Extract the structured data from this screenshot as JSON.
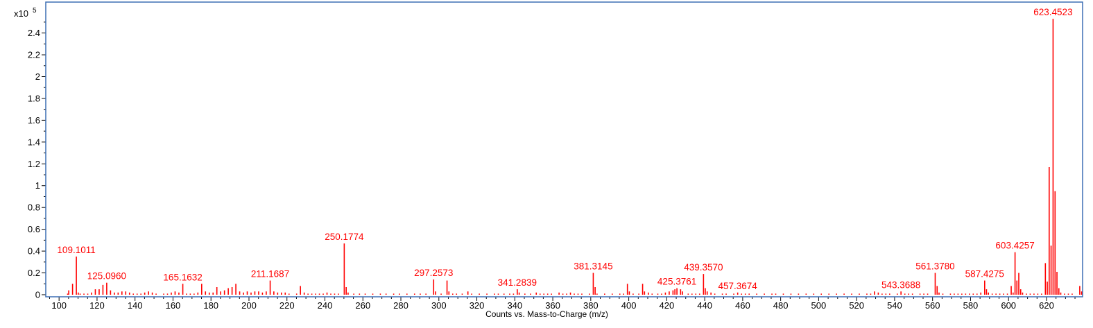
{
  "chart_data": {
    "type": "bar",
    "title": "",
    "xlabel": "Counts vs. Mass-to-Charge (m/z)",
    "ylabel": "",
    "y_multiplier_label": "x10",
    "y_multiplier_exponent": "5",
    "xlim": [
      93,
      639
    ],
    "ylim": [
      0,
      2.62
    ],
    "x_ticks": [
      100,
      120,
      140,
      160,
      180,
      200,
      220,
      240,
      260,
      280,
      300,
      320,
      340,
      360,
      380,
      400,
      420,
      440,
      460,
      480,
      500,
      520,
      540,
      560,
      580,
      600,
      620
    ],
    "y_ticks": [
      {
        "value": 0,
        "label": "0"
      },
      {
        "value": 0.2,
        "label": "0.2"
      },
      {
        "value": 0.4,
        "label": "0.4"
      },
      {
        "value": 0.6,
        "label": "0.6"
      },
      {
        "value": 0.8,
        "label": "0.8"
      },
      {
        "value": 1.0,
        "label": "1"
      },
      {
        "value": 1.2,
        "label": "1.2"
      },
      {
        "value": 1.4,
        "label": "1.4"
      },
      {
        "value": 1.6,
        "label": "1.6"
      },
      {
        "value": 1.8,
        "label": "1.8"
      },
      {
        "value": 2.0,
        "label": "2"
      },
      {
        "value": 2.2,
        "label": "2.2"
      },
      {
        "value": 2.4,
        "label": "2.4"
      }
    ],
    "grid": false,
    "legend": "none",
    "colors": {
      "peak": "#ff0000",
      "label": "#ff0000",
      "frame": "#3c6eb4",
      "axis": "#000000"
    },
    "labeled_peaks": [
      {
        "mz": 109.1011,
        "intensity": 0.35,
        "label": "109.1011"
      },
      {
        "mz": 125.096,
        "intensity": 0.11,
        "label": "125.0960"
      },
      {
        "mz": 165.1632,
        "intensity": 0.1,
        "label": "165.1632"
      },
      {
        "mz": 211.1687,
        "intensity": 0.13,
        "label": "211.1687"
      },
      {
        "mz": 250.1774,
        "intensity": 0.47,
        "label": "250.1774"
      },
      {
        "mz": 297.2573,
        "intensity": 0.14,
        "label": "297.2573"
      },
      {
        "mz": 341.2839,
        "intensity": 0.05,
        "label": "341.2839"
      },
      {
        "mz": 381.3145,
        "intensity": 0.2,
        "label": "381.3145"
      },
      {
        "mz": 425.3761,
        "intensity": 0.06,
        "label": "425.3761"
      },
      {
        "mz": 439.357,
        "intensity": 0.19,
        "label": "439.3570"
      },
      {
        "mz": 457.3674,
        "intensity": 0.02,
        "label": "457.3674"
      },
      {
        "mz": 543.3688,
        "intensity": 0.03,
        "label": "543.3688"
      },
      {
        "mz": 561.378,
        "intensity": 0.2,
        "label": "561.3780"
      },
      {
        "mz": 587.4275,
        "intensity": 0.13,
        "label": "587.4275"
      },
      {
        "mz": 603.4257,
        "intensity": 0.39,
        "label": "603.4257"
      },
      {
        "mz": 623.4523,
        "intensity": 2.53,
        "label": "623.4523"
      }
    ],
    "peaks": [
      {
        "mz": 104.5,
        "intensity": 0.01
      },
      {
        "mz": 105.1,
        "intensity": 0.04
      },
      {
        "mz": 107.1,
        "intensity": 0.1
      },
      {
        "mz": 110.1,
        "intensity": 0.02
      },
      {
        "mz": 111.1,
        "intensity": 0.01
      },
      {
        "mz": 113.1,
        "intensity": 0.01
      },
      {
        "mz": 115.1,
        "intensity": 0.01
      },
      {
        "mz": 117.1,
        "intensity": 0.02
      },
      {
        "mz": 119.1,
        "intensity": 0.05
      },
      {
        "mz": 121.1,
        "intensity": 0.05
      },
      {
        "mz": 123.1,
        "intensity": 0.09
      },
      {
        "mz": 127.1,
        "intensity": 0.04
      },
      {
        "mz": 129.1,
        "intensity": 0.02
      },
      {
        "mz": 131.1,
        "intensity": 0.02
      },
      {
        "mz": 133.1,
        "intensity": 0.03
      },
      {
        "mz": 135.1,
        "intensity": 0.03
      },
      {
        "mz": 137.1,
        "intensity": 0.02
      },
      {
        "mz": 139.1,
        "intensity": 0.01
      },
      {
        "mz": 141.1,
        "intensity": 0.01
      },
      {
        "mz": 143.1,
        "intensity": 0.01
      },
      {
        "mz": 145.1,
        "intensity": 0.02
      },
      {
        "mz": 147.1,
        "intensity": 0.03
      },
      {
        "mz": 149.1,
        "intensity": 0.02
      },
      {
        "mz": 151.1,
        "intensity": 0.01
      },
      {
        "mz": 155.1,
        "intensity": 0.01
      },
      {
        "mz": 157.1,
        "intensity": 0.01
      },
      {
        "mz": 159.1,
        "intensity": 0.02
      },
      {
        "mz": 161.1,
        "intensity": 0.03
      },
      {
        "mz": 163.1,
        "intensity": 0.02
      },
      {
        "mz": 167.1,
        "intensity": 0.01
      },
      {
        "mz": 169.1,
        "intensity": 0.01
      },
      {
        "mz": 171.1,
        "intensity": 0.01
      },
      {
        "mz": 173.1,
        "intensity": 0.02
      },
      {
        "mz": 175.1,
        "intensity": 0.1
      },
      {
        "mz": 177.1,
        "intensity": 0.03
      },
      {
        "mz": 179.1,
        "intensity": 0.02
      },
      {
        "mz": 181.1,
        "intensity": 0.02
      },
      {
        "mz": 183.1,
        "intensity": 0.07
      },
      {
        "mz": 185.1,
        "intensity": 0.03
      },
      {
        "mz": 187.1,
        "intensity": 0.04
      },
      {
        "mz": 189.1,
        "intensity": 0.06
      },
      {
        "mz": 191.1,
        "intensity": 0.07
      },
      {
        "mz": 193.1,
        "intensity": 0.1
      },
      {
        "mz": 195.1,
        "intensity": 0.03
      },
      {
        "mz": 197.1,
        "intensity": 0.02
      },
      {
        "mz": 199.1,
        "intensity": 0.03
      },
      {
        "mz": 201.1,
        "intensity": 0.02
      },
      {
        "mz": 203.1,
        "intensity": 0.03
      },
      {
        "mz": 205.1,
        "intensity": 0.03
      },
      {
        "mz": 207.1,
        "intensity": 0.02
      },
      {
        "mz": 209.1,
        "intensity": 0.03
      },
      {
        "mz": 213.1,
        "intensity": 0.03
      },
      {
        "mz": 215.1,
        "intensity": 0.02
      },
      {
        "mz": 217.1,
        "intensity": 0.02
      },
      {
        "mz": 219.1,
        "intensity": 0.02
      },
      {
        "mz": 221.1,
        "intensity": 0.01
      },
      {
        "mz": 225.1,
        "intensity": 0.01
      },
      {
        "mz": 227.1,
        "intensity": 0.08
      },
      {
        "mz": 229.1,
        "intensity": 0.02
      },
      {
        "mz": 231.1,
        "intensity": 0.01
      },
      {
        "mz": 233.1,
        "intensity": 0.01
      },
      {
        "mz": 235.1,
        "intensity": 0.01
      },
      {
        "mz": 237.1,
        "intensity": 0.01
      },
      {
        "mz": 239.1,
        "intensity": 0.01
      },
      {
        "mz": 241.1,
        "intensity": 0.02
      },
      {
        "mz": 243.1,
        "intensity": 0.01
      },
      {
        "mz": 245.1,
        "intensity": 0.01
      },
      {
        "mz": 247.1,
        "intensity": 0.01
      },
      {
        "mz": 251.2,
        "intensity": 0.07
      },
      {
        "mz": 252.2,
        "intensity": 0.02
      },
      {
        "mz": 255.2,
        "intensity": 0.01
      },
      {
        "mz": 258.2,
        "intensity": 0.01
      },
      {
        "mz": 261.2,
        "intensity": 0.01
      },
      {
        "mz": 265.2,
        "intensity": 0.01
      },
      {
        "mz": 269.2,
        "intensity": 0.01
      },
      {
        "mz": 272.2,
        "intensity": 0.01
      },
      {
        "mz": 276.2,
        "intensity": 0.01
      },
      {
        "mz": 279.2,
        "intensity": 0.01
      },
      {
        "mz": 283.2,
        "intensity": 0.01
      },
      {
        "mz": 287.2,
        "intensity": 0.01
      },
      {
        "mz": 290.2,
        "intensity": 0.01
      },
      {
        "mz": 293.2,
        "intensity": 0.01
      },
      {
        "mz": 298.3,
        "intensity": 0.03
      },
      {
        "mz": 301.2,
        "intensity": 0.01
      },
      {
        "mz": 304.3,
        "intensity": 0.13
      },
      {
        "mz": 305.3,
        "intensity": 0.03
      },
      {
        "mz": 307.3,
        "intensity": 0.01
      },
      {
        "mz": 309.3,
        "intensity": 0.01
      },
      {
        "mz": 312.3,
        "intensity": 0.01
      },
      {
        "mz": 315.3,
        "intensity": 0.03
      },
      {
        "mz": 317.3,
        "intensity": 0.01
      },
      {
        "mz": 321.3,
        "intensity": 0.01
      },
      {
        "mz": 325.3,
        "intensity": 0.01
      },
      {
        "mz": 329.3,
        "intensity": 0.01
      },
      {
        "mz": 331.3,
        "intensity": 0.01
      },
      {
        "mz": 334.3,
        "intensity": 0.01
      },
      {
        "mz": 337.3,
        "intensity": 0.01
      },
      {
        "mz": 339.3,
        "intensity": 0.01
      },
      {
        "mz": 342.3,
        "intensity": 0.02
      },
      {
        "mz": 345.3,
        "intensity": 0.01
      },
      {
        "mz": 348.3,
        "intensity": 0.01
      },
      {
        "mz": 351.3,
        "intensity": 0.02
      },
      {
        "mz": 353.3,
        "intensity": 0.01
      },
      {
        "mz": 355.3,
        "intensity": 0.01
      },
      {
        "mz": 357.3,
        "intensity": 0.01
      },
      {
        "mz": 359.3,
        "intensity": 0.01
      },
      {
        "mz": 363.3,
        "intensity": 0.02
      },
      {
        "mz": 365.3,
        "intensity": 0.01
      },
      {
        "mz": 367.3,
        "intensity": 0.01
      },
      {
        "mz": 369.3,
        "intensity": 0.02
      },
      {
        "mz": 371.3,
        "intensity": 0.01
      },
      {
        "mz": 373.3,
        "intensity": 0.01
      },
      {
        "mz": 375.3,
        "intensity": 0.01
      },
      {
        "mz": 379.3,
        "intensity": 0.01
      },
      {
        "mz": 382.3,
        "intensity": 0.07
      },
      {
        "mz": 383.3,
        "intensity": 0.01
      },
      {
        "mz": 387.3,
        "intensity": 0.01
      },
      {
        "mz": 391.3,
        "intensity": 0.01
      },
      {
        "mz": 395.3,
        "intensity": 0.01
      },
      {
        "mz": 397.3,
        "intensity": 0.01
      },
      {
        "mz": 399.3,
        "intensity": 0.1
      },
      {
        "mz": 400.3,
        "intensity": 0.03
      },
      {
        "mz": 402.3,
        "intensity": 0.01
      },
      {
        "mz": 405.3,
        "intensity": 0.01
      },
      {
        "mz": 407.3,
        "intensity": 0.1
      },
      {
        "mz": 408.3,
        "intensity": 0.03
      },
      {
        "mz": 410.3,
        "intensity": 0.02
      },
      {
        "mz": 412.3,
        "intensity": 0.01
      },
      {
        "mz": 415.3,
        "intensity": 0.01
      },
      {
        "mz": 417.3,
        "intensity": 0.01
      },
      {
        "mz": 419.3,
        "intensity": 0.02
      },
      {
        "mz": 421.3,
        "intensity": 0.03
      },
      {
        "mz": 423.3,
        "intensity": 0.04
      },
      {
        "mz": 424.3,
        "intensity": 0.05
      },
      {
        "mz": 427.3,
        "intensity": 0.05
      },
      {
        "mz": 428.3,
        "intensity": 0.03
      },
      {
        "mz": 431.3,
        "intensity": 0.01
      },
      {
        "mz": 433.3,
        "intensity": 0.01
      },
      {
        "mz": 435.3,
        "intensity": 0.01
      },
      {
        "mz": 437.3,
        "intensity": 0.01
      },
      {
        "mz": 440.3,
        "intensity": 0.06
      },
      {
        "mz": 441.3,
        "intensity": 0.03
      },
      {
        "mz": 443.3,
        "intensity": 0.02
      },
      {
        "mz": 445.3,
        "intensity": 0.01
      },
      {
        "mz": 449.3,
        "intensity": 0.01
      },
      {
        "mz": 451.3,
        "intensity": 0.01
      },
      {
        "mz": 455.3,
        "intensity": 0.01
      },
      {
        "mz": 459.4,
        "intensity": 0.01
      },
      {
        "mz": 461.4,
        "intensity": 0.01
      },
      {
        "mz": 463.4,
        "intensity": 0.01
      },
      {
        "mz": 467.4,
        "intensity": 0.01
      },
      {
        "mz": 471.4,
        "intensity": 0.01
      },
      {
        "mz": 475.4,
        "intensity": 0.01
      },
      {
        "mz": 477.4,
        "intensity": 0.01
      },
      {
        "mz": 481.4,
        "intensity": 0.01
      },
      {
        "mz": 485.4,
        "intensity": 0.01
      },
      {
        "mz": 489.4,
        "intensity": 0.01
      },
      {
        "mz": 493.4,
        "intensity": 0.01
      },
      {
        "mz": 497.4,
        "intensity": 0.01
      },
      {
        "mz": 501.4,
        "intensity": 0.01
      },
      {
        "mz": 505.4,
        "intensity": 0.01
      },
      {
        "mz": 509.4,
        "intensity": 0.01
      },
      {
        "mz": 513.4,
        "intensity": 0.01
      },
      {
        "mz": 517.4,
        "intensity": 0.01
      },
      {
        "mz": 521.4,
        "intensity": 0.01
      },
      {
        "mz": 525.4,
        "intensity": 0.01
      },
      {
        "mz": 527.4,
        "intensity": 0.01
      },
      {
        "mz": 529.4,
        "intensity": 0.03
      },
      {
        "mz": 531.4,
        "intensity": 0.02
      },
      {
        "mz": 533.4,
        "intensity": 0.01
      },
      {
        "mz": 535.4,
        "intensity": 0.01
      },
      {
        "mz": 537.4,
        "intensity": 0.01
      },
      {
        "mz": 541.4,
        "intensity": 0.01
      },
      {
        "mz": 545.4,
        "intensity": 0.01
      },
      {
        "mz": 547.4,
        "intensity": 0.01
      },
      {
        "mz": 549.4,
        "intensity": 0.01
      },
      {
        "mz": 553.4,
        "intensity": 0.01
      },
      {
        "mz": 555.4,
        "intensity": 0.01
      },
      {
        "mz": 557.4,
        "intensity": 0.01
      },
      {
        "mz": 562.4,
        "intensity": 0.08
      },
      {
        "mz": 563.4,
        "intensity": 0.02
      },
      {
        "mz": 565.4,
        "intensity": 0.01
      },
      {
        "mz": 569.4,
        "intensity": 0.01
      },
      {
        "mz": 571.4,
        "intensity": 0.01
      },
      {
        "mz": 573.4,
        "intensity": 0.01
      },
      {
        "mz": 575.4,
        "intensity": 0.01
      },
      {
        "mz": 577.4,
        "intensity": 0.01
      },
      {
        "mz": 579.4,
        "intensity": 0.01
      },
      {
        "mz": 581.4,
        "intensity": 0.01
      },
      {
        "mz": 583.4,
        "intensity": 0.01
      },
      {
        "mz": 585.4,
        "intensity": 0.02
      },
      {
        "mz": 588.4,
        "intensity": 0.05
      },
      {
        "mz": 589.4,
        "intensity": 0.02
      },
      {
        "mz": 591.4,
        "intensity": 0.01
      },
      {
        "mz": 593.4,
        "intensity": 0.01
      },
      {
        "mz": 595.4,
        "intensity": 0.01
      },
      {
        "mz": 597.4,
        "intensity": 0.01
      },
      {
        "mz": 599.4,
        "intensity": 0.01
      },
      {
        "mz": 601.4,
        "intensity": 0.08
      },
      {
        "mz": 602.4,
        "intensity": 0.02
      },
      {
        "mz": 604.4,
        "intensity": 0.13
      },
      {
        "mz": 605.4,
        "intensity": 0.2
      },
      {
        "mz": 606.4,
        "intensity": 0.05
      },
      {
        "mz": 607.4,
        "intensity": 0.02
      },
      {
        "mz": 609.4,
        "intensity": 0.01
      },
      {
        "mz": 611.4,
        "intensity": 0.01
      },
      {
        "mz": 613.4,
        "intensity": 0.01
      },
      {
        "mz": 615.4,
        "intensity": 0.01
      },
      {
        "mz": 617.4,
        "intensity": 0.01
      },
      {
        "mz": 619.4,
        "intensity": 0.29
      },
      {
        "mz": 620.4,
        "intensity": 0.12
      },
      {
        "mz": 621.4,
        "intensity": 1.17
      },
      {
        "mz": 622.4,
        "intensity": 0.45
      },
      {
        "mz": 624.5,
        "intensity": 0.95
      },
      {
        "mz": 625.5,
        "intensity": 0.21
      },
      {
        "mz": 626.5,
        "intensity": 0.06
      },
      {
        "mz": 627.5,
        "intensity": 0.02
      },
      {
        "mz": 629.5,
        "intensity": 0.01
      },
      {
        "mz": 631.5,
        "intensity": 0.01
      },
      {
        "mz": 633.5,
        "intensity": 0.01
      },
      {
        "mz": 637.5,
        "intensity": 0.08
      },
      {
        "mz": 638.5,
        "intensity": 0.03
      }
    ]
  }
}
